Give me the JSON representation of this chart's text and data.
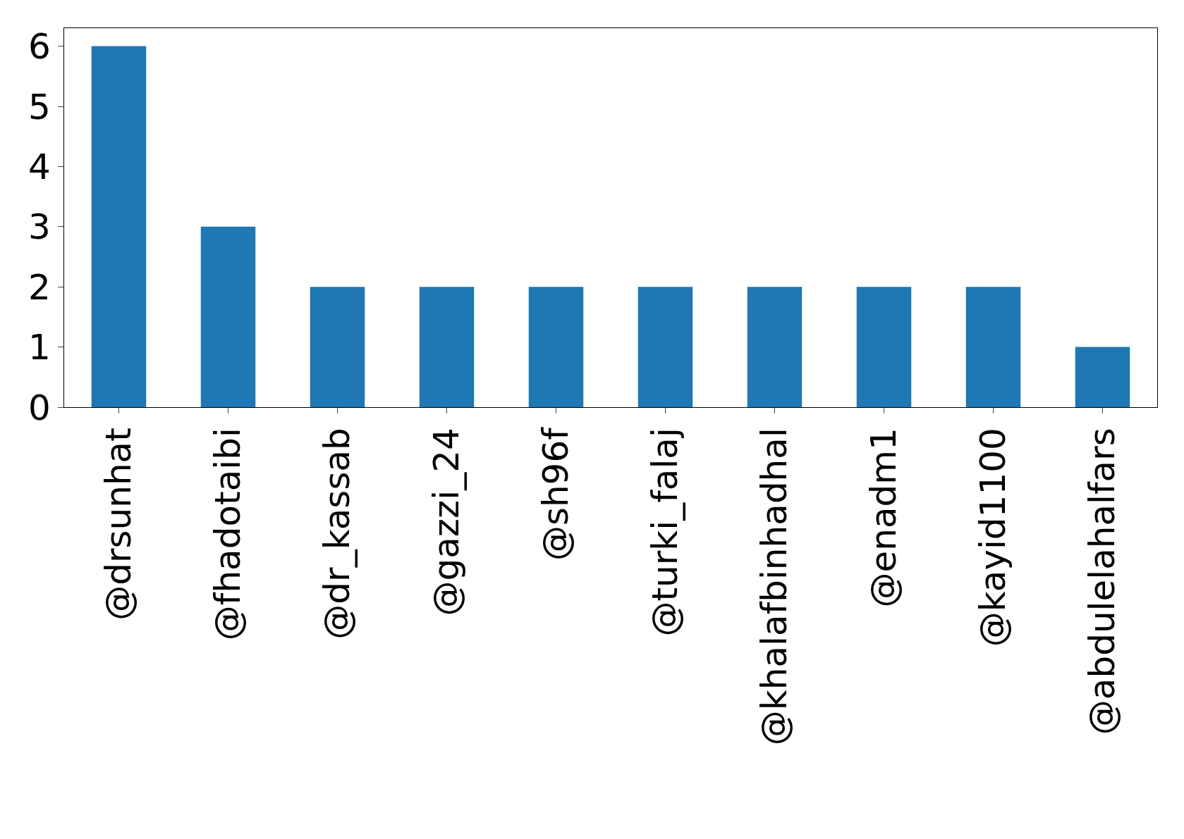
{
  "chart_data": {
    "type": "bar",
    "categories": [
      "@drsunhat",
      "@fhadotaibi",
      "@dr_kassab",
      "@gazzi_24",
      "@sh96f",
      "@turki_falaj",
      "@khalafbinhadhal",
      "@enadm1",
      "@kayid1100",
      "@abdulelahalfars"
    ],
    "values": [
      6,
      3,
      2,
      2,
      2,
      2,
      2,
      2,
      2,
      1
    ],
    "color": "#1f77b4",
    "ylim": [
      0,
      6.3
    ],
    "yticks": [
      0,
      1,
      2,
      3,
      4,
      5,
      6
    ],
    "grid": false,
    "legend": false
  }
}
